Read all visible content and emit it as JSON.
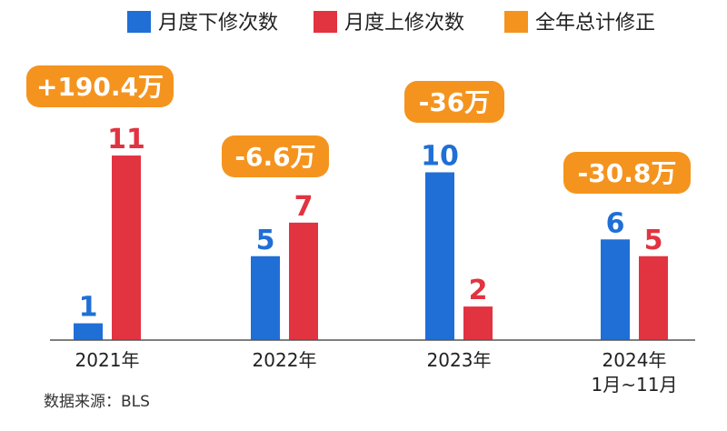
{
  "chart_data": {
    "type": "bar",
    "categories": [
      "2021年",
      "2022年",
      "2023年",
      "2024年"
    ],
    "category_sublabels": [
      "",
      "",
      "",
      "1月~11月"
    ],
    "series": [
      {
        "name": "月度下修次数",
        "values": [
          1,
          5,
          10,
          6
        ],
        "color": "#1f6fd6"
      },
      {
        "name": "月度上修次数",
        "values": [
          11,
          7,
          2,
          5
        ],
        "color": "#e23340"
      }
    ],
    "annotation_series": {
      "name": "全年总计修正",
      "values": [
        "+190.4万",
        "-6.6万",
        "-36万",
        "-30.8万"
      ],
      "color": "#f4941f"
    },
    "ylim": [
      0,
      12
    ],
    "grid": false,
    "legend_position": "top-right"
  },
  "source": "数据来源：BLS"
}
